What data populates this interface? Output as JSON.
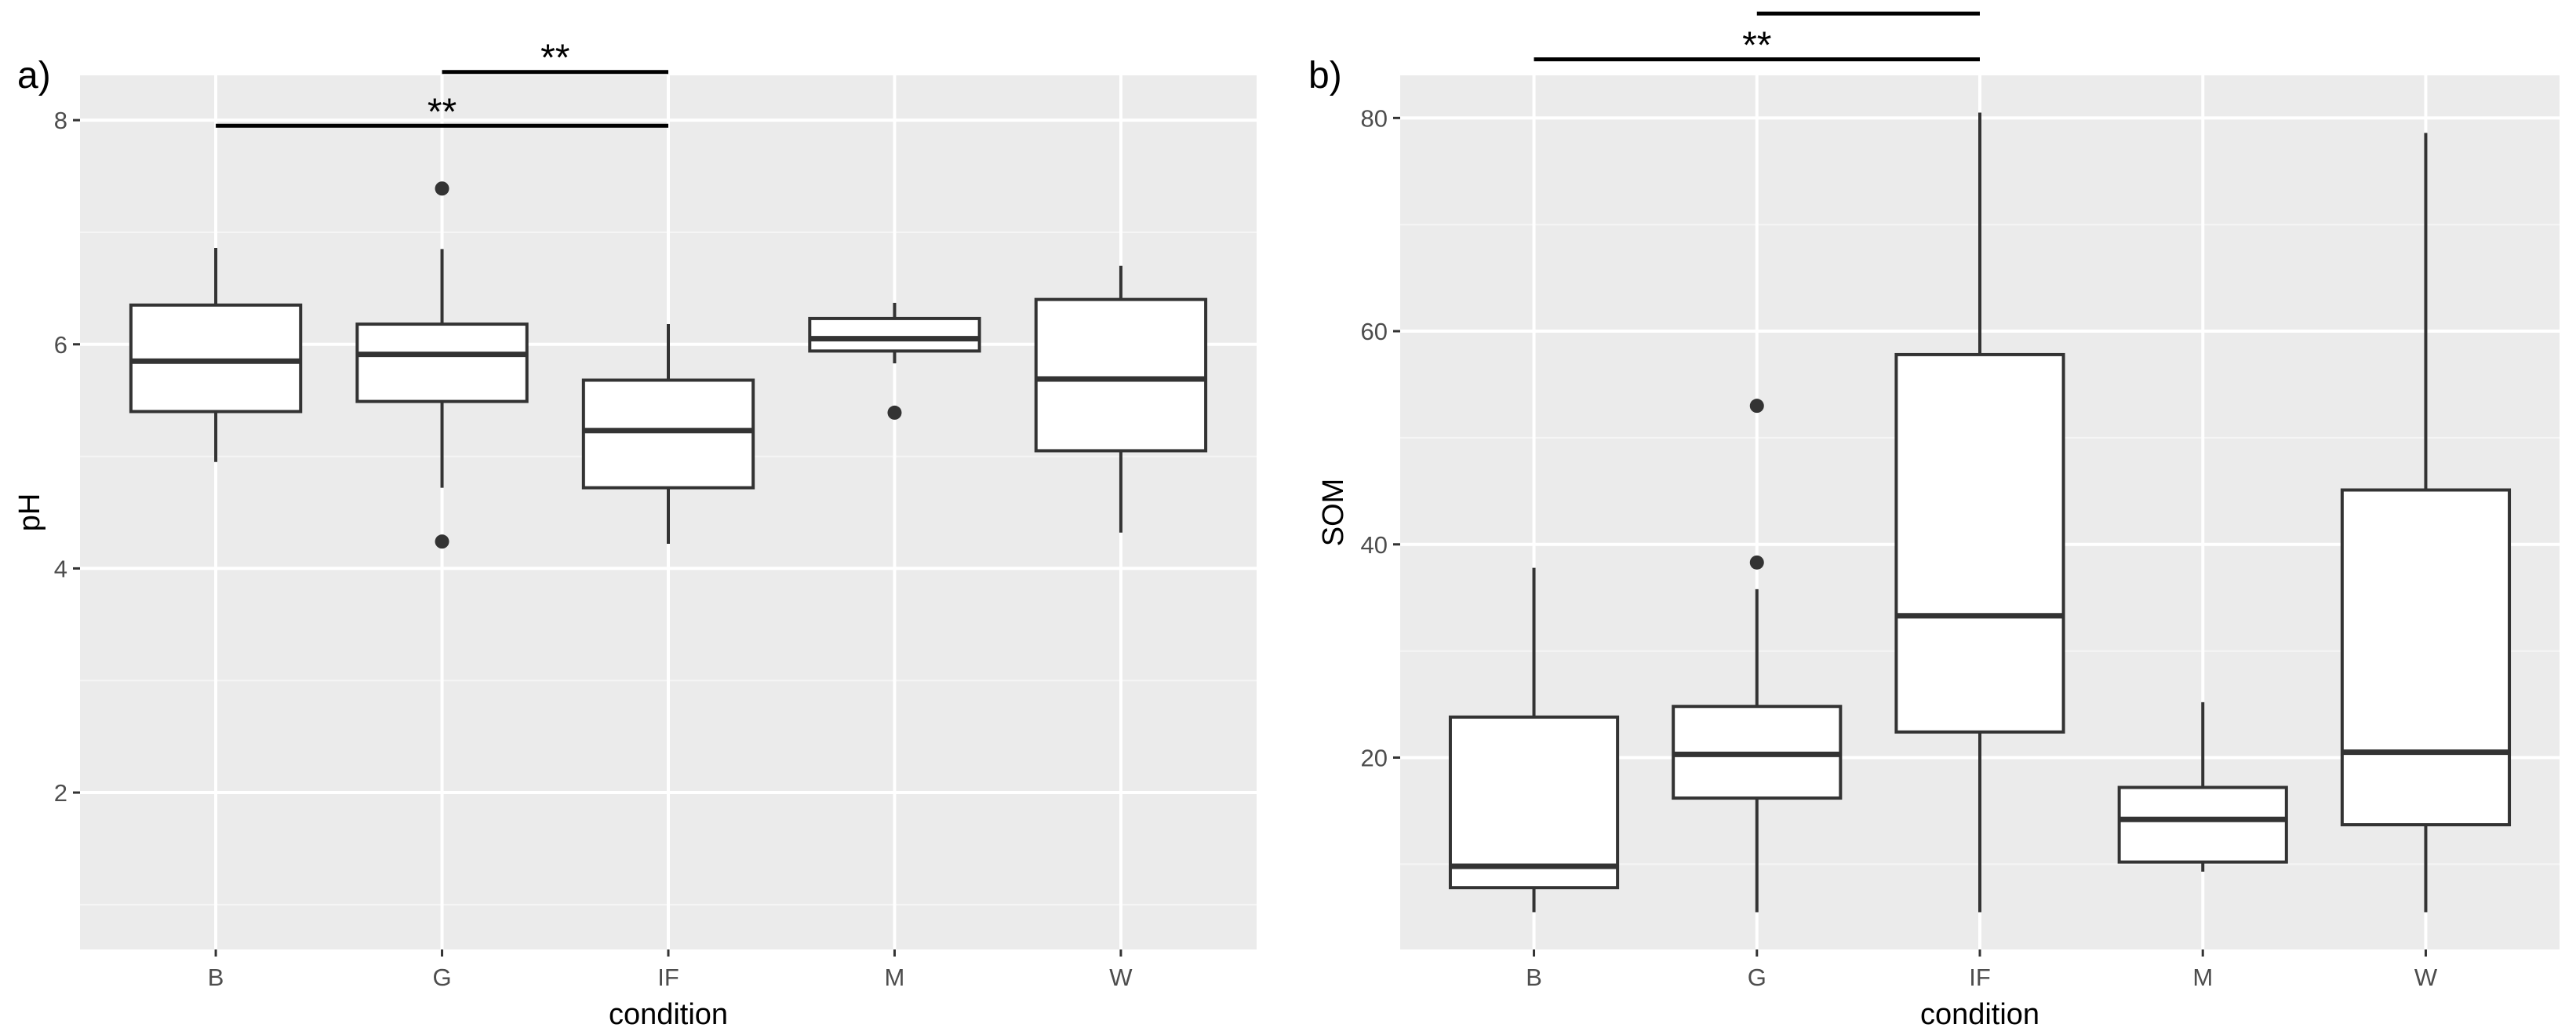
{
  "chart_data": [
    {
      "type": "box",
      "panel_tag": "a)",
      "xlabel": "condition",
      "ylabel": "pH",
      "categories": [
        "B",
        "G",
        "IF",
        "M",
        "W"
      ],
      "ylim": [
        0.6,
        8.4
      ],
      "yticks": [
        2,
        4,
        6,
        8
      ],
      "yminor": [
        1,
        3,
        5,
        7
      ],
      "boxes": [
        {
          "category": "B",
          "whisker_low": 4.95,
          "q1": 5.4,
          "median": 5.85,
          "q3": 6.35,
          "whisker_high": 6.86,
          "outliers": []
        },
        {
          "category": "G",
          "whisker_low": 4.72,
          "q1": 5.49,
          "median": 5.91,
          "q3": 6.18,
          "whisker_high": 6.85,
          "outliers": [
            7.39,
            4.24
          ]
        },
        {
          "category": "IF",
          "whisker_low": 4.22,
          "q1": 4.72,
          "median": 5.23,
          "q3": 5.68,
          "whisker_high": 6.18,
          "outliers": []
        },
        {
          "category": "M",
          "whisker_low": 5.83,
          "q1": 5.94,
          "median": 6.05,
          "q3": 6.23,
          "whisker_high": 6.37,
          "outliers": [
            5.39
          ]
        },
        {
          "category": "W",
          "whisker_low": 4.32,
          "q1": 5.05,
          "median": 5.69,
          "q3": 6.4,
          "whisker_high": 6.7,
          "outliers": []
        }
      ],
      "significance": [
        {
          "from": "G",
          "to": "IF",
          "y": 8.43,
          "label": "**"
        },
        {
          "from": "B",
          "to": "IF",
          "y": 7.95,
          "label": "**"
        }
      ],
      "grid": true
    },
    {
      "type": "box",
      "panel_tag": "b)",
      "xlabel": "condition",
      "ylabel": "SOM",
      "categories": [
        "B",
        "G",
        "IF",
        "M",
        "W"
      ],
      "ylim": [
        2,
        84
      ],
      "yticks": [
        20,
        40,
        60,
        80
      ],
      "yminor": [
        10,
        30,
        50,
        70
      ],
      "boxes": [
        {
          "category": "B",
          "whisker_low": 5.5,
          "q1": 7.8,
          "median": 9.8,
          "q3": 23.8,
          "whisker_high": 37.8,
          "outliers": []
        },
        {
          "category": "G",
          "whisker_low": 5.5,
          "q1": 16.2,
          "median": 20.3,
          "q3": 24.8,
          "whisker_high": 35.8,
          "outliers": [
            53.0,
            38.3
          ]
        },
        {
          "category": "IF",
          "whisker_low": 5.5,
          "q1": 22.4,
          "median": 33.3,
          "q3": 57.8,
          "whisker_high": 80.5,
          "outliers": []
        },
        {
          "category": "M",
          "whisker_low": 9.3,
          "q1": 10.2,
          "median": 14.2,
          "q3": 17.2,
          "whisker_high": 25.2,
          "outliers": []
        },
        {
          "category": "W",
          "whisker_low": 5.5,
          "q1": 13.7,
          "median": 20.5,
          "q3": 45.1,
          "whisker_high": 78.6,
          "outliers": []
        }
      ],
      "significance": [
        {
          "from": "G",
          "to": "IF",
          "y": 89.8,
          "label": "**"
        },
        {
          "from": "B",
          "to": "IF",
          "y": 85.5,
          "label": "**"
        }
      ],
      "grid": true
    }
  ]
}
